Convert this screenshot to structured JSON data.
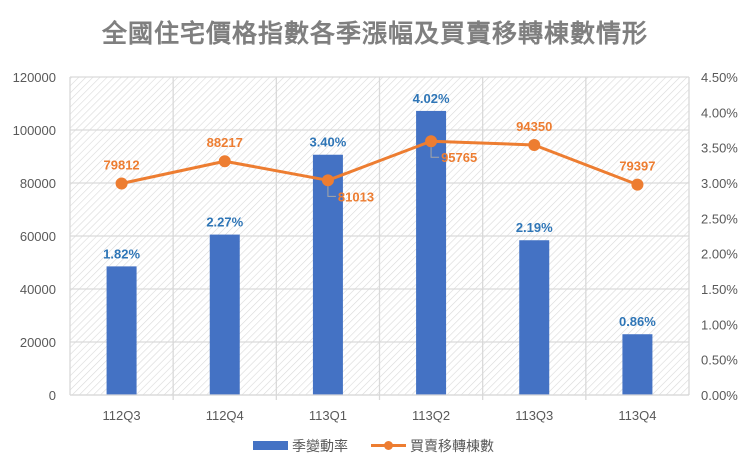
{
  "chart_data": {
    "type": "bar+line",
    "title": "全國住宅價格指數各季漲幅及買賣移轉棟數情形",
    "categories": [
      "112Q3",
      "112Q4",
      "113Q1",
      "113Q2",
      "113Q3",
      "113Q4"
    ],
    "series": [
      {
        "name": "季變動率",
        "type": "bar",
        "axis": "right",
        "values": [
          1.82,
          2.27,
          3.4,
          4.02,
          2.19,
          0.86
        ],
        "labels": [
          "1.82%",
          "2.27%",
          "3.40%",
          "4.02%",
          "2.19%",
          "0.86%"
        ],
        "color": "#4472c4"
      },
      {
        "name": "買賣移轉棟數",
        "type": "line",
        "axis": "left",
        "values": [
          79812,
          88217,
          81013,
          95765,
          94350,
          79397
        ],
        "labels": [
          "79812",
          "88217",
          "81013",
          "95765",
          "94350",
          "79397"
        ],
        "color": "#ed7d31"
      }
    ],
    "left_axis": {
      "min": 0,
      "max": 120000,
      "step": 20000,
      "ticks": [
        "0",
        "20000",
        "40000",
        "60000",
        "80000",
        "100000",
        "120000"
      ]
    },
    "right_axis": {
      "min": 0,
      "max": 4.5,
      "step": 0.5,
      "ticks": [
        "0.00%",
        "0.50%",
        "1.00%",
        "1.50%",
        "2.00%",
        "2.50%",
        "3.00%",
        "3.50%",
        "4.00%",
        "4.50%"
      ]
    },
    "xlabel": "",
    "ylabel": "",
    "grid": true,
    "legend_position": "bottom"
  },
  "legend": {
    "bar_label": "季變動率",
    "line_label": "買賣移轉棟數"
  }
}
